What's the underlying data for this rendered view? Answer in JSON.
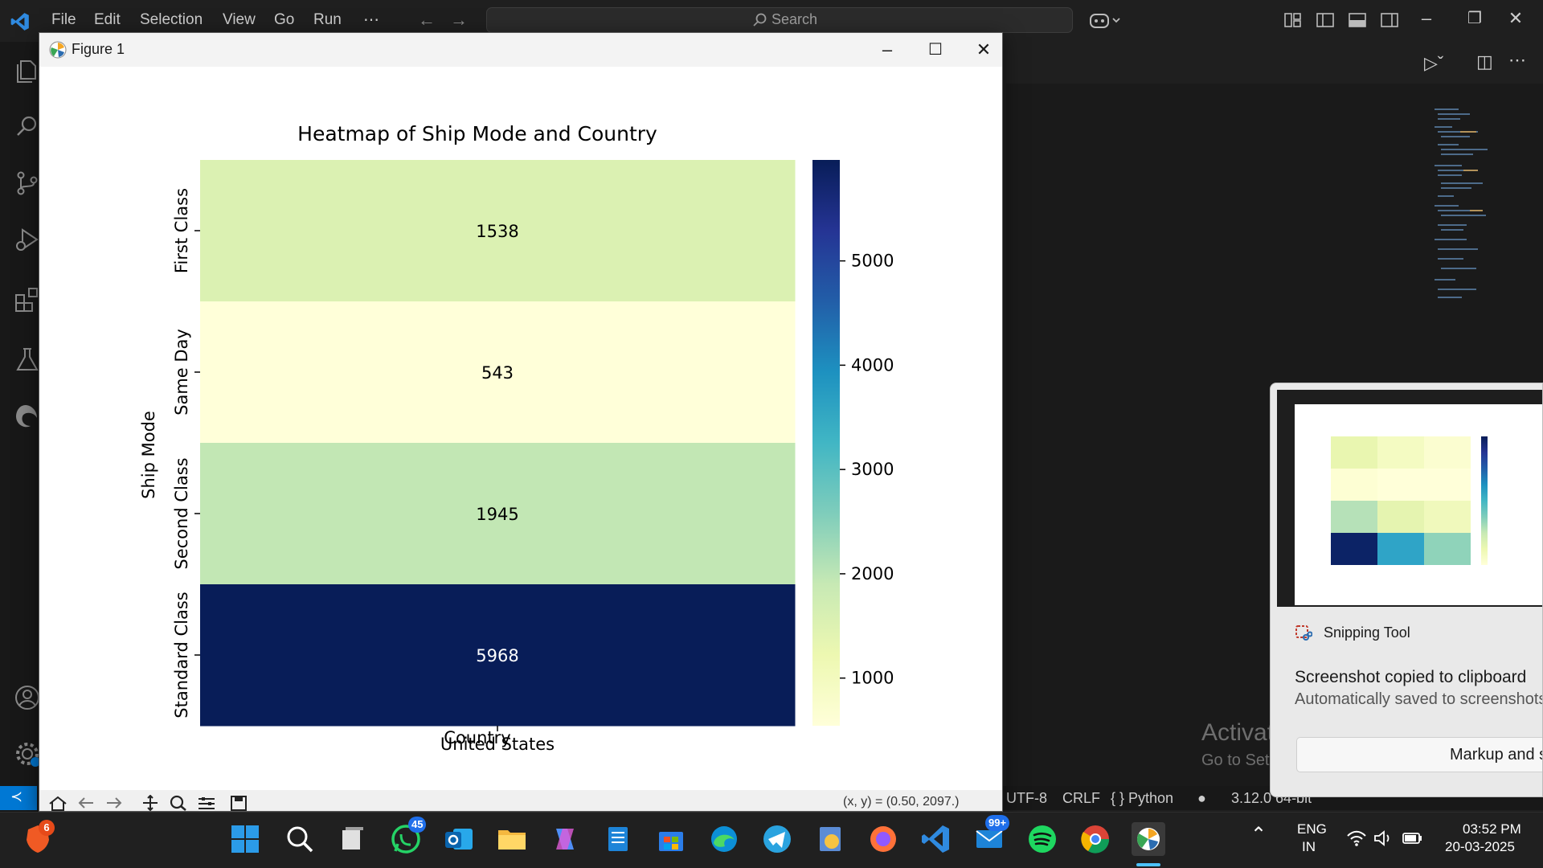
{
  "vscode": {
    "menu": [
      "File",
      "Edit",
      "Selection",
      "View",
      "Go",
      "Run"
    ],
    "menu_more": "⋯",
    "search_label": "Search",
    "status": {
      "encoding": "UTF-8",
      "line_ending": "CRLF",
      "language": "{ } Python",
      "python_version": "3.12.0 64-bit"
    },
    "activate_title": "Activate Windows",
    "activate_sub": "Go to Settings to activate Windows."
  },
  "figure": {
    "window_title": "Figure 1",
    "coordinate_readout": "(x, y) = (0.50, 2097.)"
  },
  "chart_data": {
    "type": "heatmap",
    "title": "Heatmap of Ship Mode and Country",
    "xlabel": "Country",
    "ylabel": "Ship Mode",
    "columns": [
      "United States"
    ],
    "rows": [
      "First Class",
      "Same Day",
      "Second Class",
      "Standard Class"
    ],
    "values": [
      [
        1538
      ],
      [
        543
      ],
      [
        1945
      ],
      [
        5968
      ]
    ],
    "colormap": "YlGnBu",
    "colorbar_ticks": [
      1000,
      2000,
      3000,
      4000,
      5000
    ],
    "colorbar_range": [
      543,
      5968
    ]
  },
  "notification": {
    "app_name": "Snipping Tool",
    "title": "Screenshot copied to clipboard",
    "body": "Automatically saved to screenshots folder",
    "action_label": "Markup and share"
  },
  "taskbar": {
    "badges": {
      "brave": "6",
      "whatsapp": "45",
      "mail": "99+"
    },
    "language": "ENG",
    "region": "IN",
    "time": "03:52 PM",
    "date": "20-03-2025"
  }
}
